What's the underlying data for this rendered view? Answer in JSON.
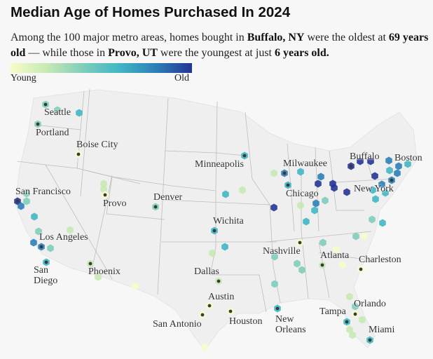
{
  "title": "Median Age of Homes Purchased In 2024",
  "subtitle": {
    "p1": "Among the 100 major metro areas, homes bought in ",
    "b1": "Buffalo, NY",
    "p2": " were the oldest at ",
    "b2": "69 years old",
    "p3": " — while those in ",
    "b3": "Provo, UT",
    "p4": " were the youngest at just ",
    "b4": "6 years old."
  },
  "legend": {
    "young": "Young",
    "old": "Old",
    "colors": [
      "#f7fcc8",
      "#c7e9b4",
      "#7fcdbb",
      "#41b6c4",
      "#2c7fb8",
      "#253494"
    ]
  },
  "cities": {
    "seattle": "Seattle",
    "portland": "Portland",
    "boise": "Boise City",
    "sf": "San Francisco",
    "provo": "Provo",
    "denver": "Denver",
    "minneapolis": "Minneapolis",
    "wichita": "Wichita",
    "la": "Los Angeles",
    "sd": "San\nDiego",
    "phoenix": "Phoenix",
    "dallas": "Dallas",
    "austin": "Austin",
    "sa": "San Antonio",
    "houston": "Houston",
    "no": "New\nOrleans",
    "nashville": "Nashville",
    "atlanta": "Atlanta",
    "charleston": "Charleston",
    "chicago": "Chicago",
    "milwaukee": "Milwaukee",
    "buffalo": "Buffalo",
    "boston": "Boston",
    "ny": "New York",
    "tampa": "Tampa",
    "orlando": "Orlando",
    "miami": "Miami"
  }
}
